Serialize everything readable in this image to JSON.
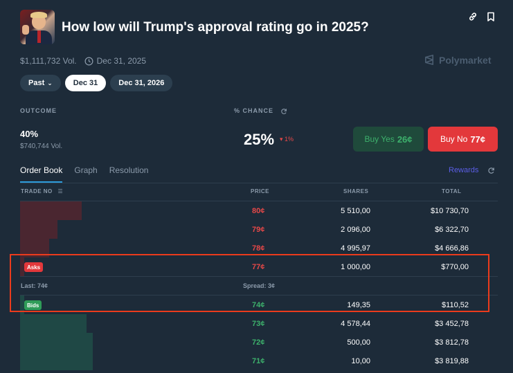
{
  "market": {
    "title": "How low will Trump's approval rating go in 2025?",
    "volume": "$1,111,732 Vol.",
    "end_date": "Dec 31, 2025",
    "brand": "Polymarket"
  },
  "date_pills": [
    {
      "label": "Past",
      "active": false
    },
    {
      "label": "Dec 31",
      "active": true
    },
    {
      "label": "Dec 31, 2026",
      "active": false
    }
  ],
  "outcome_header": {
    "outcome": "OUTCOME",
    "chance": "% CHANCE"
  },
  "outcome": {
    "label": "40%",
    "volume": "$740,744 Vol.",
    "chance": "25%",
    "delta": "1%",
    "buy_yes_label": "Buy Yes",
    "buy_yes_price": "26¢",
    "buy_no_label": "Buy No",
    "buy_no_price": "77¢"
  },
  "tabs": [
    "Order Book",
    "Graph",
    "Resolution"
  ],
  "rewards_label": "Rewards",
  "order_book": {
    "columns": {
      "trade": "TRADE NO",
      "price": "PRICE",
      "shares": "SHARES",
      "total": "TOTAL"
    },
    "asks": [
      {
        "price": "80¢",
        "shares": "5 510,00",
        "total": "$10 730,70",
        "depth": 0.13
      },
      {
        "price": "79¢",
        "shares": "2 096,00",
        "total": "$6 322,70",
        "depth": 0.08
      },
      {
        "price": "78¢",
        "shares": "4 995,97",
        "total": "$4 666,86",
        "depth": 0.06
      },
      {
        "price": "77¢",
        "shares": "1 000,00",
        "total": "$770,00",
        "depth": 0.01
      }
    ],
    "asks_badge": "Asks",
    "last": "Last: 74¢",
    "spread": "Spread: 3¢",
    "bids_badge": "Bids",
    "bids": [
      {
        "price": "74¢",
        "shares": "149,35",
        "total": "$110,52",
        "depth": 0.01
      },
      {
        "price": "73¢",
        "shares": "4 578,44",
        "total": "$3 452,78",
        "depth": 0.14
      },
      {
        "price": "72¢",
        "shares": "500,00",
        "total": "$3 812,78",
        "depth": 0.15
      },
      {
        "price": "71¢",
        "shares": "10,00",
        "total": "$3 819,88",
        "depth": 0.15
      }
    ]
  }
}
